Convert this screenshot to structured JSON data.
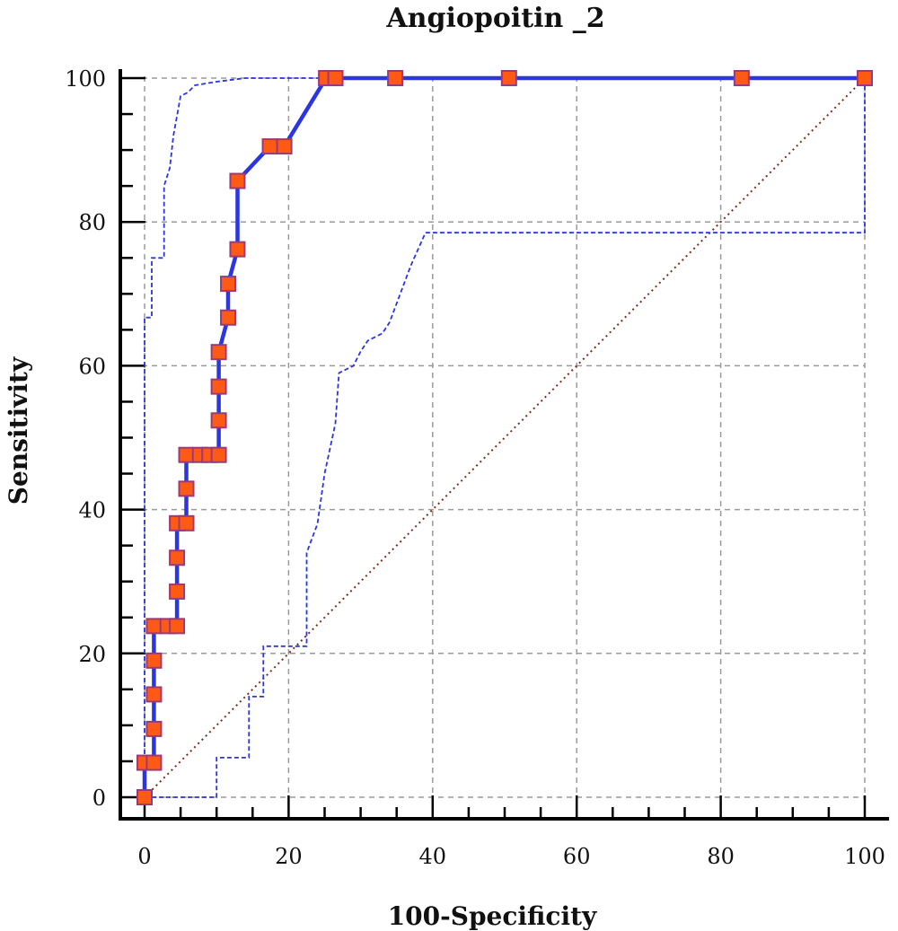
{
  "chart_data": {
    "type": "line",
    "title": "Angiopoitin _2",
    "xlabel": "100-Specificity",
    "ylabel": "Sensitivity",
    "xlim": [
      0,
      100
    ],
    "ylim": [
      0,
      100
    ],
    "x_ticks": [
      "0",
      "20",
      "40",
      "60",
      "80",
      "100"
    ],
    "y_ticks": [
      "0",
      "20",
      "40",
      "60",
      "80",
      "100"
    ],
    "grid": true,
    "series": [
      {
        "role": "roc",
        "color": "#2b35e0",
        "marker_fill": "#ff5a14",
        "marker_edge": "#9b3a7a",
        "points": [
          [
            0,
            0
          ],
          [
            0,
            4.8
          ],
          [
            1.3,
            4.8
          ],
          [
            1.3,
            9.5
          ],
          [
            1.3,
            14.3
          ],
          [
            1.3,
            19.0
          ],
          [
            1.3,
            23.8
          ],
          [
            3.2,
            23.8
          ],
          [
            4.5,
            23.8
          ],
          [
            4.5,
            28.6
          ],
          [
            4.5,
            33.3
          ],
          [
            4.5,
            38.1
          ],
          [
            5.8,
            38.1
          ],
          [
            5.8,
            42.9
          ],
          [
            5.8,
            47.6
          ],
          [
            7.7,
            47.6
          ],
          [
            9.0,
            47.6
          ],
          [
            10.3,
            47.6
          ],
          [
            10.3,
            52.4
          ],
          [
            10.3,
            57.1
          ],
          [
            10.3,
            61.9
          ],
          [
            11.6,
            66.7
          ],
          [
            11.6,
            71.4
          ],
          [
            12.9,
            76.2
          ],
          [
            12.9,
            85.7
          ],
          [
            17.4,
            90.5
          ],
          [
            19.4,
            90.5
          ],
          [
            25.2,
            100
          ],
          [
            26.5,
            100
          ],
          [
            34.8,
            100
          ],
          [
            50.6,
            100
          ],
          [
            82.9,
            100
          ],
          [
            100,
            100
          ]
        ]
      },
      {
        "role": "ci_upper",
        "color": "#2b35e0",
        "style": "dashed",
        "points": [
          [
            0,
            0
          ],
          [
            0,
            66.7
          ],
          [
            1.0,
            66.7
          ],
          [
            1.0,
            75.0
          ],
          [
            2.7,
            75.0
          ],
          [
            2.7,
            85.0
          ],
          [
            3.5,
            87.5
          ],
          [
            4.0,
            92.0
          ],
          [
            5.0,
            97.5
          ],
          [
            6.0,
            98.0
          ],
          [
            7.0,
            99.0
          ],
          [
            10.0,
            99.5
          ],
          [
            14.0,
            100
          ],
          [
            100,
            100
          ]
        ]
      },
      {
        "role": "ci_lower",
        "color": "#2b35e0",
        "style": "dashed",
        "points": [
          [
            0,
            0
          ],
          [
            10.0,
            0
          ],
          [
            10.0,
            5.5
          ],
          [
            14.5,
            5.5
          ],
          [
            14.5,
            14.0
          ],
          [
            16.5,
            14.0
          ],
          [
            16.5,
            21.0
          ],
          [
            22.5,
            21.0
          ],
          [
            22.5,
            34.0
          ],
          [
            24.0,
            38.0
          ],
          [
            25.0,
            45.0
          ],
          [
            26.5,
            52.0
          ],
          [
            27.0,
            59.0
          ],
          [
            29.0,
            60.0
          ],
          [
            30.0,
            62.0
          ],
          [
            31.0,
            63.5
          ],
          [
            33.0,
            64.5
          ],
          [
            34.0,
            66.0
          ],
          [
            35.5,
            70.0
          ],
          [
            37.0,
            74.0
          ],
          [
            39.0,
            78.5
          ],
          [
            100,
            78.5
          ],
          [
            100,
            100
          ]
        ]
      },
      {
        "role": "reference_diagonal",
        "color": "#7a2e1a",
        "style": "dotted",
        "points": [
          [
            0,
            0
          ],
          [
            100,
            100
          ]
        ]
      }
    ]
  }
}
